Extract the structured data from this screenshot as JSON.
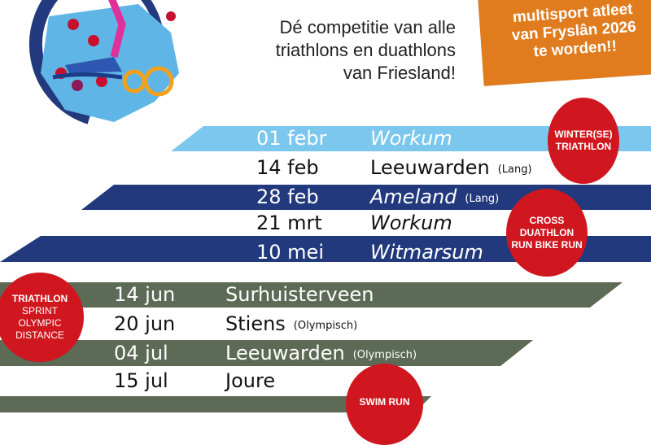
{
  "header": {
    "tagline": [
      "Dé competitie van alle",
      "triathlons en duathlons",
      "van Friesland!"
    ],
    "promo": [
      "multisport atleet",
      "van Fryslân 2026",
      "te worden!!"
    ]
  },
  "colors": {
    "light_blue": "#7cc7ee",
    "navy": "#223a7d",
    "olive": "#5d6a56",
    "red": "#d0161e",
    "orange": "#e07b1e"
  },
  "badges": {
    "winter": [
      "WINTER(SE)",
      "TRIATHLON"
    ],
    "cross": [
      "CROSS",
      "DUATHLON",
      "RUN BIKE RUN"
    ],
    "triathlon": [
      "TRIATHLON",
      "SPRINT",
      "OLYMPIC",
      "DISTANCE"
    ],
    "swimrun": [
      "SWIM RUN"
    ]
  },
  "events": [
    {
      "date": "01 febr",
      "place": "Workum",
      "note": ""
    },
    {
      "date": "14 feb",
      "place": "Leeuwarden",
      "note": "(Lang)"
    },
    {
      "date": "28 feb",
      "place": "Ameland",
      "note": "(Lang)"
    },
    {
      "date": "21 mrt",
      "place": "Workum",
      "note": ""
    },
    {
      "date": "10 mei",
      "place": "Witmarsum",
      "note": ""
    },
    {
      "date": "14 jun",
      "place": "Surhuisterveen",
      "note": ""
    },
    {
      "date": "20 jun",
      "place": "Stiens",
      "note": "(Olympisch)"
    },
    {
      "date": "04 jul",
      "place": "Leeuwarden",
      "note": "(Olympisch)"
    },
    {
      "date": "15 jul",
      "place": "Joure",
      "note": ""
    }
  ]
}
